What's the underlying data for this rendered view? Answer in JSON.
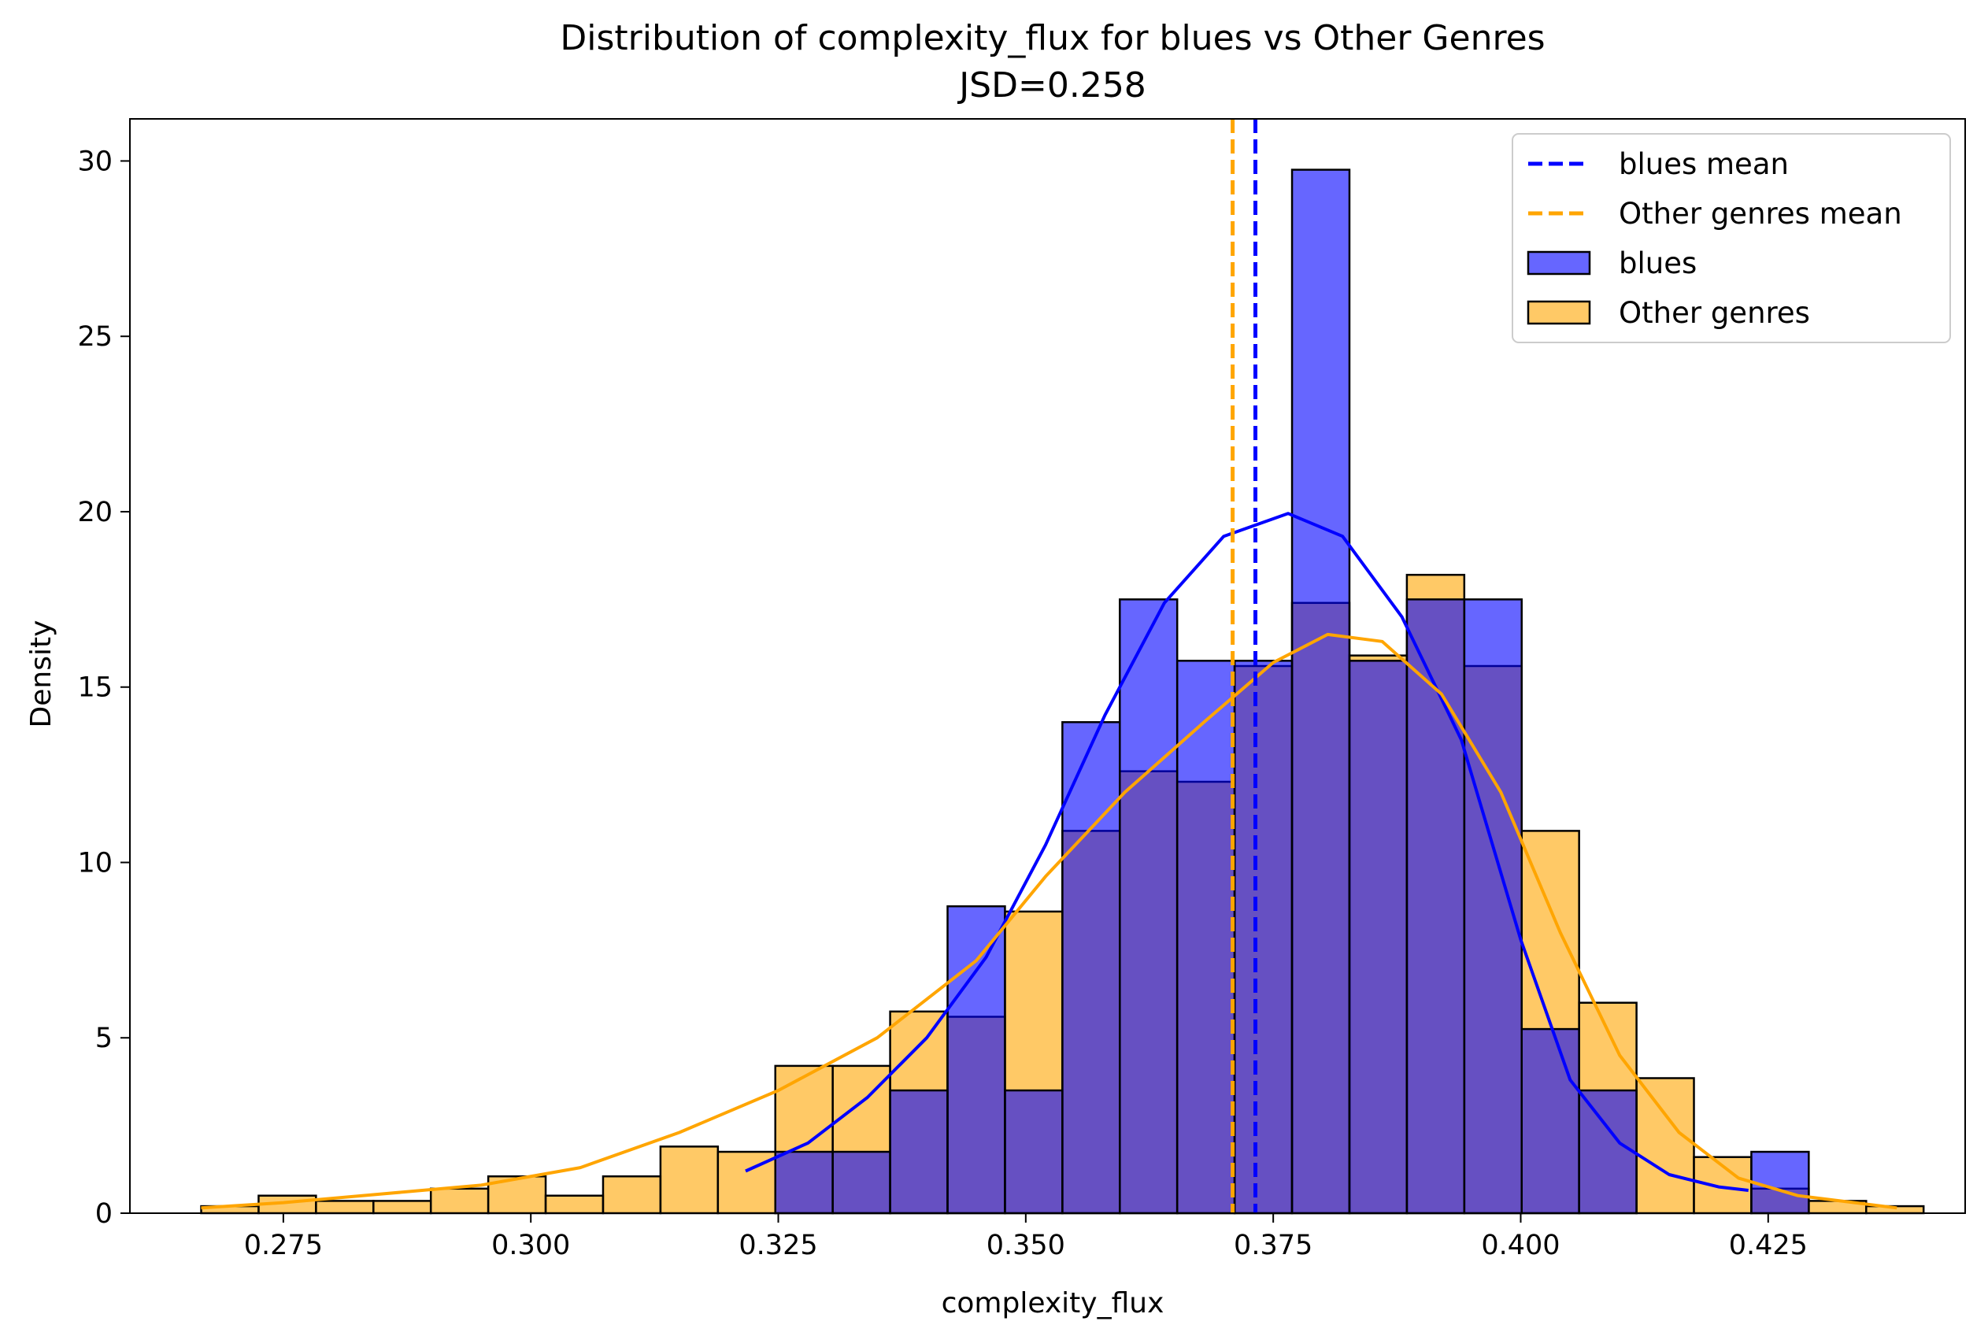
{
  "chart_data": {
    "type": "histogram",
    "title": "Distribution of complexity_flux for blues vs Other Genres",
    "subtitle": "JSD=0.258",
    "xlabel": "complexity_flux",
    "ylabel": "Density",
    "xlim": [
      0.2595,
      0.4449
    ],
    "ylim": [
      0,
      31.2
    ],
    "xticks": [
      0.275,
      0.3,
      0.325,
      0.35,
      0.375,
      0.4,
      0.425
    ],
    "xtick_labels": [
      "0.275",
      "0.300",
      "0.325",
      "0.350",
      "0.375",
      "0.400",
      "0.425"
    ],
    "yticks": [
      0,
      5,
      10,
      15,
      20,
      25,
      30
    ],
    "ytick_labels": [
      "0",
      "5",
      "10",
      "15",
      "20",
      "25",
      "30"
    ],
    "grid": false,
    "legend_position": "top-right",
    "colors": {
      "blues": "#0000ff",
      "other": "#ffa500",
      "overlap": "#c08a62"
    },
    "legend": [
      {
        "label": "blues mean",
        "kind": "dashed-line",
        "color": "#0000ff"
      },
      {
        "label": "Other genres mean",
        "kind": "dashed-line",
        "color": "#ffa500"
      },
      {
        "label": "blues",
        "kind": "patch",
        "color": "#6666ff"
      },
      {
        "label": "Other genres",
        "kind": "patch",
        "color": "#ffc966"
      }
    ],
    "series": [
      {
        "name": "Other genres",
        "bin_edges": [
          0.2667,
          0.2725,
          0.2783,
          0.2841,
          0.2899,
          0.2957,
          0.3015,
          0.3073,
          0.3131,
          0.3189,
          0.3247,
          0.3305,
          0.3363,
          0.3421,
          0.3479,
          0.3537,
          0.3595,
          0.3653,
          0.3711,
          0.3769,
          0.3827,
          0.3885,
          0.3943,
          0.4001,
          0.4059,
          0.4117,
          0.4175,
          0.4233,
          0.4291,
          0.4349
        ],
        "density": [
          0.2,
          0.5,
          0.35,
          0.35,
          0.7,
          1.05,
          0.5,
          1.05,
          1.9,
          1.75,
          4.2,
          4.2,
          5.75,
          5.6,
          8.6,
          10.9,
          12.6,
          12.3,
          15.6,
          17.4,
          15.9,
          18.2,
          15.6,
          10.9,
          6.0,
          3.85,
          1.6,
          0.7,
          0.35,
          0.2
        ],
        "mean": 0.3709,
        "kde": {
          "x": [
            0.2667,
            0.275,
            0.285,
            0.295,
            0.305,
            0.315,
            0.325,
            0.335,
            0.345,
            0.352,
            0.36,
            0.368,
            0.375,
            0.3805,
            0.386,
            0.392,
            0.398,
            0.404,
            0.41,
            0.416,
            0.422,
            0.428,
            0.438
          ],
          "y": [
            0.15,
            0.3,
            0.55,
            0.8,
            1.3,
            2.3,
            3.5,
            5.0,
            7.2,
            9.6,
            12.0,
            14.0,
            15.7,
            16.5,
            16.3,
            14.8,
            12.0,
            8.0,
            4.5,
            2.3,
            1.0,
            0.5,
            0.15
          ]
        }
      },
      {
        "name": "blues",
        "bin_edges": [
          0.3247,
          0.3305,
          0.3363,
          0.3421,
          0.3479,
          0.3537,
          0.3595,
          0.3653,
          0.3711,
          0.3769,
          0.3827,
          0.3885,
          0.3943,
          0.4001,
          0.4059,
          0.4117,
          0.4175,
          0.4233
        ],
        "density": [
          1.75,
          1.75,
          3.5,
          8.75,
          3.5,
          14.0,
          17.5,
          15.75,
          15.75,
          29.75,
          15.75,
          17.5,
          17.5,
          5.25,
          3.5,
          0.0,
          0.0,
          1.75
        ],
        "mean": 0.3732,
        "kde": {
          "x": [
            0.3217,
            0.328,
            0.334,
            0.34,
            0.346,
            0.352,
            0.358,
            0.364,
            0.37,
            0.3765,
            0.382,
            0.388,
            0.394,
            0.4,
            0.405,
            0.41,
            0.415,
            0.42,
            0.423
          ],
          "y": [
            1.2,
            2.0,
            3.3,
            5.0,
            7.3,
            10.5,
            14.2,
            17.4,
            19.3,
            19.95,
            19.3,
            17.0,
            13.5,
            7.8,
            3.8,
            2.0,
            1.1,
            0.75,
            0.65
          ]
        }
      }
    ]
  }
}
